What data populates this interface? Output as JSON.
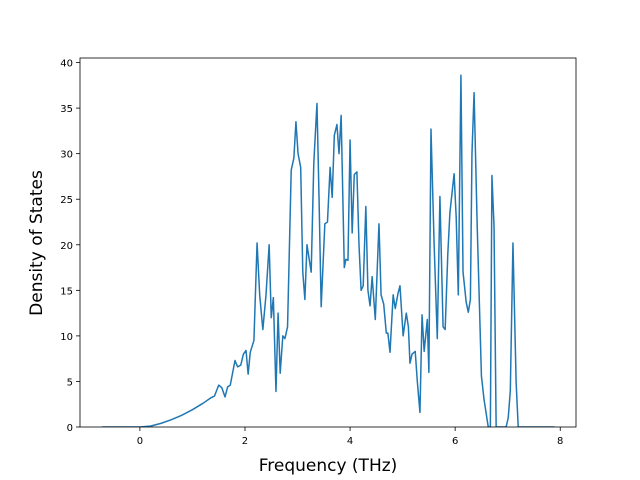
{
  "chart_data": {
    "type": "line",
    "xlabel": "Frequency (THz)",
    "ylabel": "Density of States",
    "x": [
      -0.72,
      0,
      0.2,
      0.4,
      0.6,
      0.8,
      1.0,
      1.2,
      1.35,
      1.42,
      1.5,
      1.56,
      1.62,
      1.67,
      1.72,
      1.81,
      1.86,
      1.92,
      1.97,
      2.02,
      2.06,
      2.1,
      2.17,
      2.23,
      2.28,
      2.34,
      2.4,
      2.46,
      2.5,
      2.54,
      2.59,
      2.63,
      2.67,
      2.72,
      2.76,
      2.81,
      2.88,
      2.93,
      2.97,
      3.01,
      3.06,
      3.1,
      3.14,
      3.18,
      3.26,
      3.31,
      3.37,
      3.41,
      3.45,
      3.52,
      3.57,
      3.62,
      3.66,
      3.7,
      3.75,
      3.79,
      3.83,
      3.89,
      3.92,
      3.96,
      4.0,
      4.04,
      4.08,
      4.13,
      4.17,
      4.21,
      4.25,
      4.3,
      4.34,
      4.38,
      4.42,
      4.48,
      4.55,
      4.59,
      4.64,
      4.69,
      4.72,
      4.76,
      4.82,
      4.86,
      4.91,
      4.95,
      5.01,
      5.07,
      5.11,
      5.14,
      5.18,
      5.24,
      5.28,
      5.33,
      5.37,
      5.41,
      5.47,
      5.5,
      5.54,
      5.6,
      5.66,
      5.71,
      5.77,
      5.81,
      5.86,
      5.9,
      5.98,
      6.02,
      6.06,
      6.11,
      6.15,
      6.21,
      6.25,
      6.29,
      6.32,
      6.36,
      6.42,
      6.5,
      6.55,
      6.63,
      6.67,
      6.7,
      6.74,
      6.78,
      6.97,
      7.01,
      7.05,
      7.1,
      7.16,
      7.2,
      7.89
    ],
    "series": [
      {
        "color": "#1f77b4",
        "values": [
          0,
          0,
          0.1,
          0.4,
          0.8,
          1.3,
          1.9,
          2.6,
          3.2,
          3.4,
          4.6,
          4.3,
          3.3,
          4.4,
          4.6,
          7.3,
          6.6,
          6.8,
          8.0,
          8.4,
          5.8,
          8.2,
          9.5,
          20.2,
          14.5,
          10.7,
          14.5,
          20.0,
          12.0,
          14.2,
          3.9,
          12.5,
          5.9,
          10.0,
          9.7,
          11.0,
          28.2,
          29.5,
          33.5,
          30.0,
          28.5,
          17.0,
          14.0,
          20.0,
          17.0,
          29.0,
          35.5,
          25.0,
          13.2,
          22.3,
          22.5,
          28.5,
          25.2,
          32.0,
          33.2,
          30.0,
          34.2,
          17.5,
          18.4,
          18.3,
          31.5,
          21.3,
          27.7,
          28.0,
          20.0,
          15.0,
          15.5,
          24.2,
          15.0,
          13.3,
          16.5,
          11.8,
          22.3,
          14.5,
          13.5,
          10.3,
          10.3,
          8.2,
          14.5,
          13.0,
          14.6,
          15.5,
          10.0,
          12.5,
          11.0,
          7.0,
          8.0,
          8.3,
          5.0,
          1.6,
          12.3,
          8.3,
          11.8,
          6.0,
          32.7,
          20.0,
          9.7,
          25.3,
          11.0,
          10.7,
          19.0,
          23.5,
          27.8,
          23.0,
          14.5,
          38.6,
          17.0,
          13.7,
          12.6,
          14.0,
          30.0,
          36.7,
          22.0,
          5.6,
          3.0,
          0,
          0,
          27.6,
          22.0,
          0,
          0,
          1.0,
          4.0,
          20.2,
          5.0,
          0,
          0
        ]
      }
    ],
    "xlim": [
      -1.14,
      8.3
    ],
    "ylim": [
      0,
      40.5
    ],
    "xticks": [
      0,
      2,
      4,
      6,
      8
    ],
    "yticks": [
      0,
      5,
      10,
      15,
      20,
      25,
      30,
      35,
      40
    ]
  }
}
